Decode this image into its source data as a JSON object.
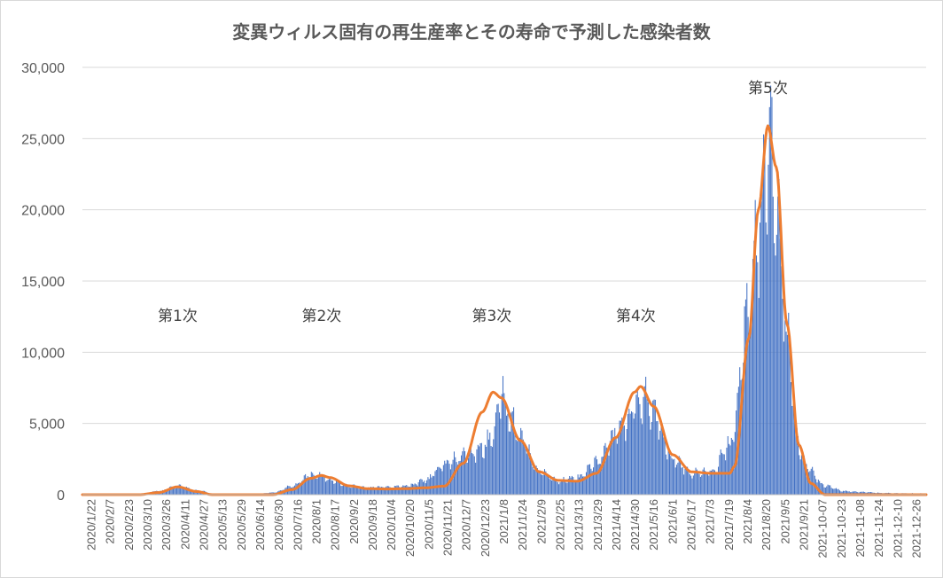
{
  "chart_data": {
    "type": "bar",
    "title": "変異ウィルス固有の再生産率とその寿命で予測した感染者数",
    "ylim": [
      0,
      30000
    ],
    "y_ticks": [
      {
        "value": 0,
        "label": "0"
      },
      {
        "value": 5000,
        "label": "5,000"
      },
      {
        "value": 10000,
        "label": "10,000"
      },
      {
        "value": 15000,
        "label": "15,000"
      },
      {
        "value": 20000,
        "label": "20,000"
      },
      {
        "value": 25000,
        "label": "25,000"
      },
      {
        "value": 30000,
        "label": "30,000"
      }
    ],
    "x_range": [
      "2020-01-22",
      "2021-12-31"
    ],
    "x_tick_labels": [
      "2020/1/22",
      "2020/2/7",
      "2020/2/23",
      "2020/3/10",
      "2020/3/26",
      "2020/4/11",
      "2020/4/27",
      "2020/5/13",
      "2020/5/29",
      "2020/6/14",
      "2020/6/30",
      "2020/7/16",
      "2020/8/1",
      "2020/8/17",
      "2020/9/2",
      "2020/9/18",
      "2020/10/4",
      "2020/10/20",
      "2020/11/5",
      "2020/11/21",
      "2020/12/7",
      "2020/12/23",
      "2021/1/8",
      "2021/1/24",
      "2021/2/9",
      "2021/2/25",
      "2021/3/13",
      "2021/3/29",
      "2021/4/14",
      "2021/4/30",
      "2021/5/16",
      "2021/6/1",
      "2021/6/17",
      "2021/7/3",
      "2021/7/19",
      "2021/8/4",
      "2021/8/20",
      "2021/9/5",
      "2021/9/21",
      "2021-10-07",
      "2021-10-23",
      "2021-11-08",
      "2021-11-24",
      "2021-12-10",
      "2021-12-26"
    ],
    "grid": "horizontal",
    "series": [
      {
        "kind": "bar",
        "color": "#4472c4",
        "anchors": [
          [
            "2020-01-22",
            0
          ],
          [
            "2020-03-10",
            10
          ],
          [
            "2020-03-26",
            250
          ],
          [
            "2020-04-11",
            600
          ],
          [
            "2020-04-27",
            300
          ],
          [
            "2020-05-13",
            30
          ],
          [
            "2020-06-14",
            30
          ],
          [
            "2020-06-30",
            150
          ],
          [
            "2020-07-16",
            600
          ],
          [
            "2020-08-01",
            1400
          ],
          [
            "2020-08-10",
            1300
          ],
          [
            "2020-08-17",
            1000
          ],
          [
            "2020-09-02",
            600
          ],
          [
            "2020-09-18",
            500
          ],
          [
            "2020-10-04",
            550
          ],
          [
            "2020-10-20",
            600
          ],
          [
            "2020-11-05",
            1000
          ],
          [
            "2020-11-21",
            2200
          ],
          [
            "2020-12-07",
            2700
          ],
          [
            "2020-12-23",
            3300
          ],
          [
            "2021-01-01",
            4200
          ],
          [
            "2021-01-08",
            7000
          ],
          [
            "2021-01-16",
            5200
          ],
          [
            "2021-01-24",
            4000
          ],
          [
            "2021-02-09",
            1600
          ],
          [
            "2021-02-25",
            1000
          ],
          [
            "2021-03-13",
            1200
          ],
          [
            "2021-03-29",
            2200
          ],
          [
            "2021-04-14",
            4200
          ],
          [
            "2021-04-30",
            6000
          ],
          [
            "2021-05-08",
            6800
          ],
          [
            "2021-05-16",
            5500
          ],
          [
            "2021-06-01",
            2500
          ],
          [
            "2021-06-17",
            1500
          ],
          [
            "2021-07-03",
            1600
          ],
          [
            "2021-07-19",
            3500
          ],
          [
            "2021-08-04",
            13000
          ],
          [
            "2021-08-12",
            19000
          ],
          [
            "2021-08-20",
            24500
          ],
          [
            "2021-08-27",
            20000
          ],
          [
            "2021-09-05",
            11000
          ],
          [
            "2021-09-15",
            3500
          ],
          [
            "2021-09-21",
            2000
          ],
          [
            "2021-10-07",
            600
          ],
          [
            "2021-10-23",
            250
          ],
          [
            "2021-11-08",
            180
          ],
          [
            "2021-11-24",
            120
          ],
          [
            "2021-12-10",
            100
          ],
          [
            "2021-12-31",
            80
          ]
        ]
      },
      {
        "kind": "line",
        "color": "#ed7d31",
        "anchors": [
          [
            "2020-01-22",
            0
          ],
          [
            "2020-03-10",
            0
          ],
          [
            "2020-03-26",
            150
          ],
          [
            "2020-04-11",
            550
          ],
          [
            "2020-04-27",
            220
          ],
          [
            "2020-05-10",
            0
          ],
          [
            "2020-06-30",
            0
          ],
          [
            "2020-07-16",
            350
          ],
          [
            "2020-08-01",
            1150
          ],
          [
            "2020-08-10",
            1350
          ],
          [
            "2020-08-17",
            1200
          ],
          [
            "2020-09-02",
            620
          ],
          [
            "2020-09-18",
            420
          ],
          [
            "2020-10-04",
            400
          ],
          [
            "2020-10-20",
            420
          ],
          [
            "2020-11-05",
            480
          ],
          [
            "2020-11-21",
            600
          ],
          [
            "2020-12-07",
            2200
          ],
          [
            "2020-12-23",
            5800
          ],
          [
            "2021-01-01",
            7200
          ],
          [
            "2021-01-08",
            6800
          ],
          [
            "2021-01-24",
            3800
          ],
          [
            "2021-02-09",
            1600
          ],
          [
            "2021-02-25",
            1000
          ],
          [
            "2021-03-13",
            950
          ],
          [
            "2021-03-29",
            1500
          ],
          [
            "2021-04-14",
            4000
          ],
          [
            "2021-04-30",
            7200
          ],
          [
            "2021-05-05",
            7600
          ],
          [
            "2021-05-16",
            6200
          ],
          [
            "2021-06-01",
            2800
          ],
          [
            "2021-06-17",
            1600
          ],
          [
            "2021-07-03",
            1500
          ],
          [
            "2021-07-19",
            1500
          ],
          [
            "2021-07-23",
            2000
          ],
          [
            "2021-08-04",
            11000
          ],
          [
            "2021-08-12",
            20000
          ],
          [
            "2021-08-20",
            25900
          ],
          [
            "2021-08-27",
            23000
          ],
          [
            "2021-09-05",
            12000
          ],
          [
            "2021-09-15",
            3500
          ],
          [
            "2021-09-25",
            800
          ],
          [
            "2021-10-07",
            0
          ],
          [
            "2021-12-31",
            0
          ]
        ]
      }
    ],
    "annotations": [
      {
        "text": "第1次",
        "x": "2020-04-11",
        "y": 12200
      },
      {
        "text": "第2次",
        "x": "2020-08-10",
        "y": 12200
      },
      {
        "text": "第3次",
        "x": "2020-12-31",
        "y": 12200
      },
      {
        "text": "第4次",
        "x": "2021-05-01",
        "y": 12200
      },
      {
        "text": "第5次",
        "x": "2021-08-20",
        "y": 28200
      }
    ]
  }
}
